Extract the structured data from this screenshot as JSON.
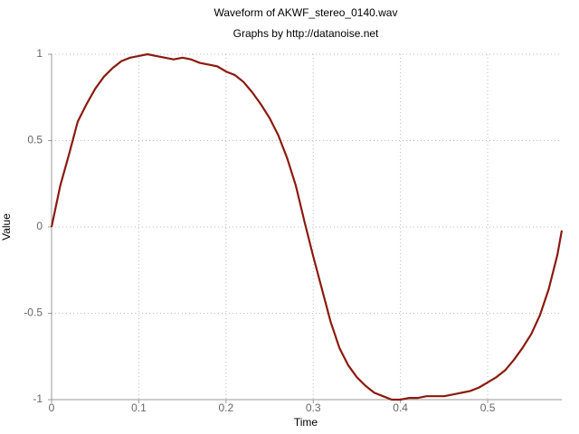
{
  "chart_data": {
    "type": "line",
    "title": "Waveform of AKWF_stereo_0140.wav",
    "subtitle": "Graphs by http://datanoise.net",
    "x_label": "Time",
    "y_label": "Value",
    "xlim": [
      0,
      0.585
    ],
    "ylim": [
      -1,
      1
    ],
    "xticks": [
      0,
      0.1,
      0.2,
      0.3,
      0.4,
      0.5
    ],
    "yticks": [
      -1,
      -0.5,
      0,
      0.5,
      1
    ],
    "grid": true,
    "series": [
      {
        "color": "#8b1a0e",
        "x": [
          0,
          0.01,
          0.02,
          0.03,
          0.04,
          0.05,
          0.06,
          0.07,
          0.08,
          0.09,
          0.1,
          0.11,
          0.12,
          0.13,
          0.14,
          0.15,
          0.16,
          0.17,
          0.18,
          0.19,
          0.2,
          0.21,
          0.22,
          0.23,
          0.24,
          0.25,
          0.26,
          0.27,
          0.28,
          0.29,
          0.3,
          0.31,
          0.32,
          0.33,
          0.34,
          0.35,
          0.36,
          0.37,
          0.38,
          0.39,
          0.4,
          0.41,
          0.42,
          0.43,
          0.44,
          0.45,
          0.46,
          0.47,
          0.48,
          0.49,
          0.5,
          0.51,
          0.52,
          0.53,
          0.54,
          0.55,
          0.56,
          0.57,
          0.58,
          0.585
        ],
        "values": [
          0,
          0.24,
          0.42,
          0.61,
          0.71,
          0.8,
          0.87,
          0.92,
          0.96,
          0.98,
          0.99,
          1.0,
          0.99,
          0.98,
          0.97,
          0.98,
          0.97,
          0.95,
          0.94,
          0.93,
          0.9,
          0.88,
          0.84,
          0.78,
          0.71,
          0.63,
          0.53,
          0.4,
          0.24,
          0.03,
          -0.17,
          -0.36,
          -0.55,
          -0.7,
          -0.8,
          -0.87,
          -0.92,
          -0.96,
          -0.98,
          -1.0,
          -1.0,
          -0.99,
          -0.99,
          -0.98,
          -0.98,
          -0.98,
          -0.97,
          -0.96,
          -0.95,
          -0.93,
          -0.9,
          -0.87,
          -0.83,
          -0.77,
          -0.7,
          -0.62,
          -0.51,
          -0.36,
          -0.16,
          -0.02
        ]
      }
    ]
  }
}
